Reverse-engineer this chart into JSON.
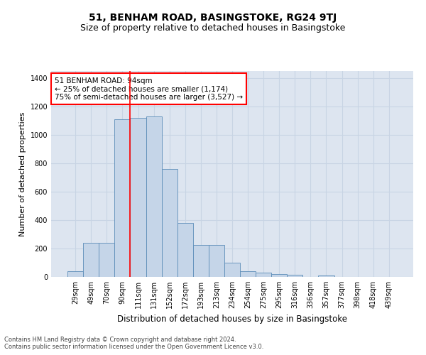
{
  "title": "51, BENHAM ROAD, BASINGSTOKE, RG24 9TJ",
  "subtitle": "Size of property relative to detached houses in Basingstoke",
  "xlabel": "Distribution of detached houses by size in Basingstoke",
  "ylabel": "Number of detached properties",
  "categories": [
    "29sqm",
    "49sqm",
    "70sqm",
    "90sqm",
    "111sqm",
    "131sqm",
    "152sqm",
    "172sqm",
    "193sqm",
    "213sqm",
    "234sqm",
    "254sqm",
    "275sqm",
    "295sqm",
    "316sqm",
    "336sqm",
    "357sqm",
    "377sqm",
    "398sqm",
    "418sqm",
    "439sqm"
  ],
  "values": [
    38,
    238,
    240,
    1110,
    1120,
    1130,
    760,
    380,
    225,
    225,
    100,
    38,
    30,
    20,
    15,
    0,
    10,
    0,
    0,
    0,
    0
  ],
  "bar_color": "#c5d5e8",
  "bar_edgecolor": "#5b8db8",
  "vline_x_index": 3,
  "vline_color": "red",
  "annotation_text": "51 BENHAM ROAD: 94sqm\n← 25% of detached houses are smaller (1,174)\n75% of semi-detached houses are larger (3,527) →",
  "annotation_box_color": "white",
  "annotation_box_edgecolor": "red",
  "ylim": [
    0,
    1450
  ],
  "yticks": [
    0,
    200,
    400,
    600,
    800,
    1000,
    1200,
    1400
  ],
  "grid_color": "#c8d4e4",
  "bg_color": "#dde5f0",
  "footnote1": "Contains HM Land Registry data © Crown copyright and database right 2024.",
  "footnote2": "Contains public sector information licensed under the Open Government Licence v3.0.",
  "title_fontsize": 10,
  "subtitle_fontsize": 9,
  "xlabel_fontsize": 8.5,
  "ylabel_fontsize": 8,
  "tick_fontsize": 7,
  "annotation_fontsize": 7.5,
  "footnote_fontsize": 6
}
